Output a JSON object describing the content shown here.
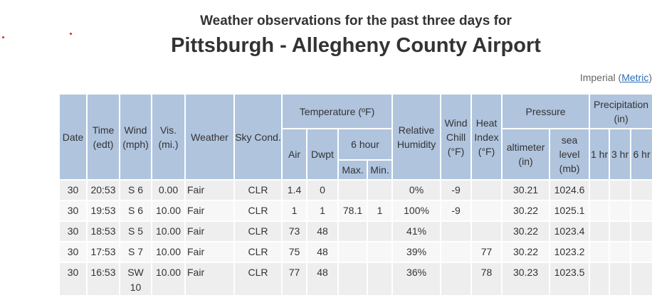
{
  "header": {
    "subtitle": "Weather observations for the past three days for",
    "title": "Pittsburgh - Allegheny County Airport"
  },
  "units": {
    "prefix": "Imperial (",
    "link": "Metric",
    "suffix": ")"
  },
  "table": {
    "headers": {
      "date": "Date",
      "time": "Time (edt)",
      "wind": "Wind (mph)",
      "vis": "Vis. (mi.)",
      "weather": "Weather",
      "sky": "Sky Cond.",
      "temperature": "Temperature (ºF)",
      "humidity": "Relative Humidity",
      "wind_chill": "Wind Chill (°F)",
      "heat_index": "Heat Index (°F)",
      "pressure": "Pressure",
      "precipitation": "Precipitation (in)",
      "air": "Air",
      "dwpt": "Dwpt",
      "six_hour": "6 hour",
      "max": "Max.",
      "min": "Min.",
      "altimeter": "altimeter (in)",
      "sea_level": "sea level (mb)",
      "p1": "1 hr",
      "p3": "3 hr",
      "p6": "6 hr"
    },
    "rows": [
      [
        "30",
        "20:53",
        "S 6",
        "0.00",
        "Fair",
        "CLR",
        "1.4",
        "0",
        null,
        null,
        "0%",
        "-9",
        null,
        "30.21",
        "1024.6",
        null,
        null,
        null
      ],
      [
        "30",
        "19:53",
        "S 6",
        "10.00",
        "Fair",
        "CLR",
        "1",
        "1",
        "78.1",
        "1",
        "100%",
        "-9",
        null,
        "30.22",
        "1025.1",
        null,
        null,
        null
      ],
      [
        "30",
        "18:53",
        "S 5",
        "10.00",
        "Fair",
        "CLR",
        "73",
        "48",
        null,
        null,
        "41%",
        null,
        null,
        "30.22",
        "1023.4",
        null,
        null,
        null
      ],
      [
        "30",
        "17:53",
        "S 7",
        "10.00",
        "Fair",
        "CLR",
        "75",
        "48",
        null,
        null,
        "39%",
        null,
        "77",
        "30.22",
        "1023.2",
        null,
        null,
        null
      ],
      [
        "30",
        "16:53",
        "SW 10",
        "10.00",
        "Fair",
        "CLR",
        "77",
        "48",
        null,
        null,
        "36%",
        null,
        "78",
        "30.23",
        "1023.5",
        null,
        null,
        null
      ]
    ]
  }
}
